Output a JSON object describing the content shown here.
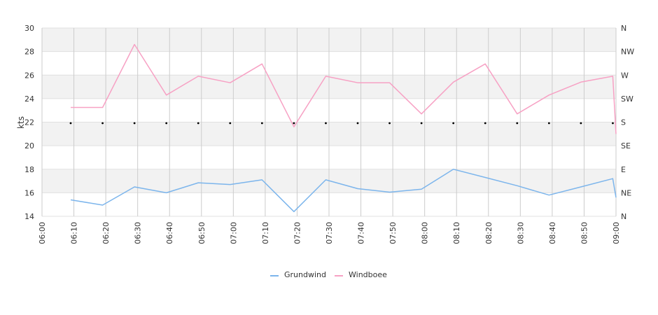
{
  "chart_data": {
    "type": "line",
    "ylabel": "kts",
    "ylim": [
      14,
      30
    ],
    "y_ticks": [
      "30",
      "28",
      "26",
      "24",
      "22",
      "20",
      "18",
      "16",
      "14"
    ],
    "right_axis_ticks": [
      "N",
      "NW",
      "W",
      "SW",
      "S",
      "SE",
      "E",
      "NE",
      "N"
    ],
    "x_ticks": [
      "06:00",
      "06:10",
      "06:20",
      "06:30",
      "06:40",
      "06:50",
      "07:00",
      "07:10",
      "07:20",
      "07:30",
      "07:40",
      "07:50",
      "08:00",
      "08:10",
      "08:20",
      "08:30",
      "08:40",
      "08:50",
      "09:00"
    ],
    "x_range": [
      "06:00",
      "09:00"
    ],
    "grid": true,
    "legend_position": "bottom",
    "series": [
      {
        "name": "Grundwind",
        "color": "#7cb5ec",
        "x": [
          "06:09",
          "06:19",
          "06:29",
          "06:39",
          "06:49",
          "06:59",
          "07:09",
          "07:19",
          "07:29",
          "07:39",
          "07:49",
          "07:59",
          "08:09",
          "08:19",
          "08:29",
          "08:39",
          "08:49",
          "08:59",
          "09:00"
        ],
        "values": [
          15.4,
          14.95,
          16.5,
          16.0,
          16.85,
          16.7,
          17.1,
          14.4,
          17.1,
          16.35,
          16.05,
          16.3,
          18.0,
          17.3,
          16.6,
          15.8,
          16.5,
          17.2,
          15.6
        ]
      },
      {
        "name": "Windboee",
        "color": "#f7a1c4",
        "x": [
          "06:09",
          "06:19",
          "06:29",
          "06:39",
          "06:49",
          "06:59",
          "07:09",
          "07:19",
          "07:29",
          "07:39",
          "07:49",
          "07:59",
          "08:09",
          "08:19",
          "08:29",
          "08:39",
          "08:49",
          "08:59",
          "09:00"
        ],
        "values": [
          23.25,
          23.25,
          28.6,
          24.3,
          25.9,
          25.35,
          26.95,
          21.6,
          25.9,
          25.35,
          25.35,
          22.7,
          25.4,
          26.95,
          22.7,
          24.3,
          25.4,
          25.9,
          21.0
        ]
      },
      {
        "name": "",
        "type": "scatter",
        "color": "#000000",
        "axis": "direction",
        "x": [
          "06:09",
          "06:19",
          "06:29",
          "06:39",
          "06:49",
          "06:59",
          "07:09",
          "07:19",
          "07:29",
          "07:39",
          "07:49",
          "07:59",
          "08:09",
          "08:19",
          "08:29",
          "08:39",
          "08:49",
          "08:59"
        ],
        "values": [
          "S",
          "S",
          "S",
          "S",
          "S",
          "S",
          "S",
          "S",
          "S",
          "S",
          "S",
          "S",
          "S",
          "S",
          "S",
          "S",
          "S",
          "S"
        ]
      }
    ]
  }
}
